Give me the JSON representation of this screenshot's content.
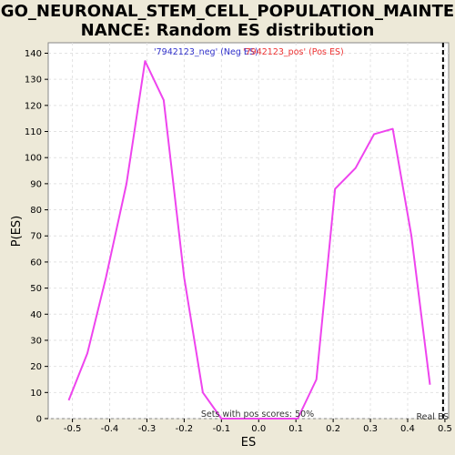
{
  "chart_data": {
    "type": "line",
    "title_line1": "GO_NEURONAL_STEM_CELL_POPULATION_MAINTE",
    "title_line2": "NANCE: Random ES distribution",
    "xlabel": "ES",
    "ylabel": "P(ES)",
    "xlim": [
      -0.565,
      0.51
    ],
    "ylim": [
      0,
      144
    ],
    "x_ticks": [
      -0.5,
      -0.4,
      -0.3,
      -0.2,
      -0.1,
      0.0,
      0.1,
      0.2,
      0.3,
      0.4,
      0.5
    ],
    "x_tick_labels": [
      "-0.5",
      "-0.4",
      "-0.3",
      "-0.2",
      "-0.1",
      "0.0",
      "0.1",
      "0.2",
      "0.3",
      "0.4",
      "0.5"
    ],
    "y_ticks": [
      0,
      10,
      20,
      30,
      40,
      50,
      60,
      70,
      80,
      90,
      100,
      110,
      120,
      130,
      140
    ],
    "y_tick_labels": [
      "0",
      "10",
      "20",
      "30",
      "40",
      "50",
      "60",
      "70",
      "80",
      "90",
      "100",
      "110",
      "120",
      "130",
      "140"
    ],
    "grid": true,
    "series": [
      {
        "name": "'7942123_neg' (Neg ES)",
        "color": "#3333cc",
        "values": []
      },
      {
        "name": "'7942123_pos' (Pos ES)",
        "color": "#ee3333",
        "values": []
      }
    ],
    "curve": {
      "color": "#ee44ee",
      "x": [
        -0.51,
        -0.46,
        -0.41,
        -0.355,
        -0.305,
        -0.255,
        -0.2,
        -0.15,
        -0.1,
        -0.05,
        0.0,
        0.05,
        0.105,
        0.155,
        0.205,
        0.26,
        0.31,
        0.36,
        0.41,
        0.46
      ],
      "y": [
        7,
        25,
        54,
        90,
        137,
        122,
        54,
        10,
        0,
        0,
        0,
        0,
        0,
        15,
        88,
        96,
        109,
        111,
        70,
        13
      ]
    },
    "real_es": {
      "x": 0.495,
      "label": "Real ES",
      "color": "#000000"
    },
    "annotation": "Sets with pos scores: 50%"
  }
}
